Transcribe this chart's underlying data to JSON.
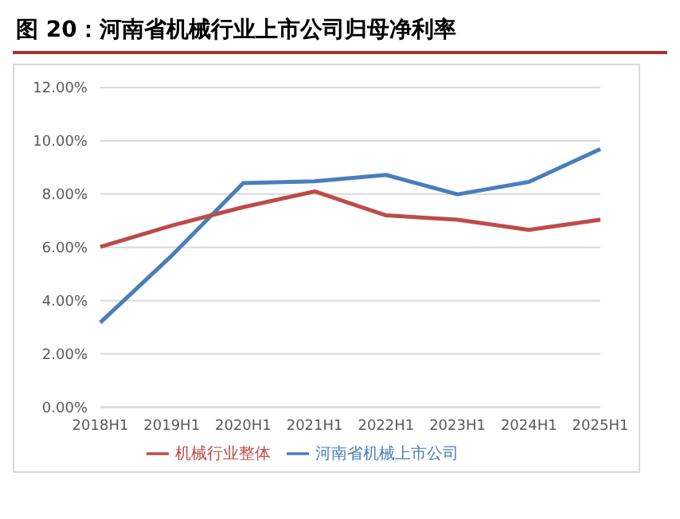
{
  "chart_data": {
    "type": "line",
    "title": "图 20：河南省机械行业上市公司归母净利率",
    "categories": [
      "2018H1",
      "2019H1",
      "2020H1",
      "2021H1",
      "2022H1",
      "2023H1",
      "2024H1",
      "2025H1"
    ],
    "series": [
      {
        "name": "河南省机械上市公司",
        "color": "#4a7ebb",
        "values": [
          3.18,
          5.69,
          8.41,
          8.48,
          8.72,
          7.99,
          8.46,
          9.69
        ]
      },
      {
        "name": "机械行业整体",
        "color": "#be4b48",
        "values": [
          6.02,
          6.82,
          7.51,
          8.1,
          7.2,
          7.04,
          6.66,
          7.04
        ]
      }
    ],
    "ylim": [
      0,
      12
    ],
    "yticks": [
      {
        "value": 0,
        "label": "0.00%"
      },
      {
        "value": 2,
        "label": "2.00%"
      },
      {
        "value": 4,
        "label": "4.00%"
      },
      {
        "value": 6,
        "label": "6.00%"
      },
      {
        "value": 8,
        "label": "8.00%"
      },
      {
        "value": 10,
        "label": "10.00%"
      },
      {
        "value": 12,
        "label": "12.00%"
      }
    ],
    "grid": "y",
    "legend": "bottom",
    "marker": "none",
    "line_style": "solid"
  }
}
